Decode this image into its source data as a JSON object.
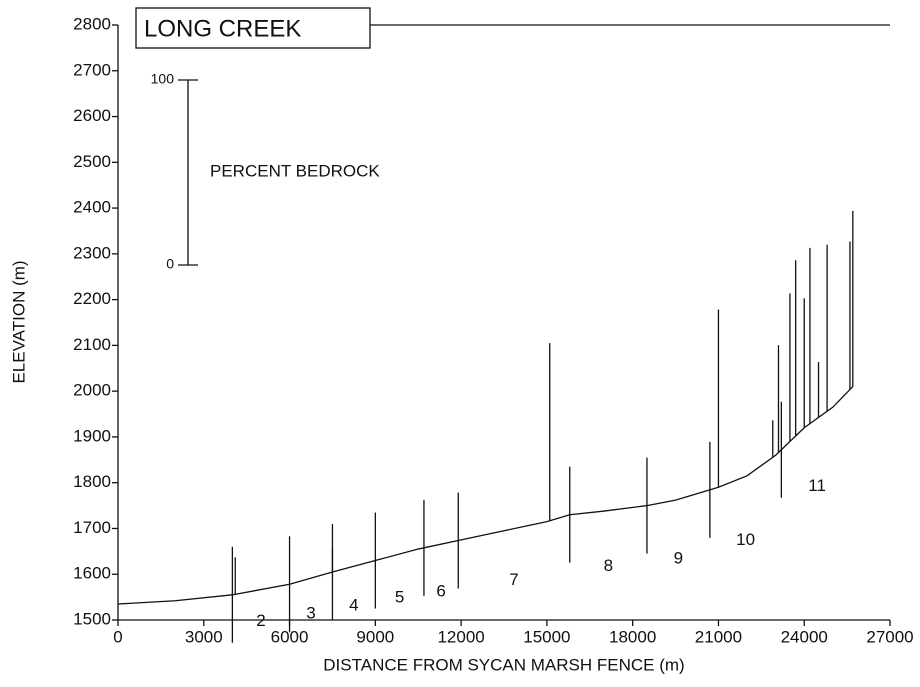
{
  "chart_data": {
    "type": "line",
    "title": "LONG CREEK",
    "x_label": "DISTANCE FROM SYCAN MARSH FENCE (m)",
    "y_label": "ELEVATION (m)",
    "xlim": [
      0,
      27000
    ],
    "xticks": [
      0,
      3000,
      6000,
      9000,
      12000,
      15000,
      18000,
      21000,
      24000,
      27000
    ],
    "ylim": [
      1500,
      2800
    ],
    "yticks": [
      1500,
      1600,
      1700,
      1800,
      1900,
      2000,
      2100,
      2200,
      2300,
      2400,
      2500,
      2600,
      2700,
      2800
    ],
    "color": "#111111",
    "x": [
      0,
      2000,
      4000,
      6000,
      7500,
      9000,
      10500,
      12000,
      13500,
      15000,
      15800,
      17000,
      18500,
      19500,
      21000,
      22000,
      23000,
      24000,
      25000,
      25700
    ],
    "values": [
      1535,
      1542,
      1555,
      1578,
      1605,
      1630,
      1655,
      1675,
      1695,
      1715,
      1730,
      1738,
      1750,
      1762,
      1790,
      1815,
      1860,
      1920,
      1965,
      2010
    ],
    "reach_boundaries": [
      4000,
      6000,
      7500,
      9000,
      10700,
      11900,
      15800,
      18500,
      20700,
      23200
    ],
    "reaches": [
      2,
      3,
      4,
      5,
      6,
      7,
      8,
      9,
      10,
      11
    ],
    "bedrock_label": "PERCENT BEDROCK",
    "bedrock_ticks": [
      0,
      100
    ],
    "bedrock_x": [
      4100,
      7500,
      15100,
      21000,
      22900,
      23100,
      23500,
      23700,
      24000,
      24200,
      24500,
      24800,
      25600,
      25700
    ],
    "bedrock_percent": [
      20,
      13,
      96,
      96,
      20,
      58,
      80,
      95,
      70,
      95,
      30,
      90,
      80,
      95
    ]
  }
}
